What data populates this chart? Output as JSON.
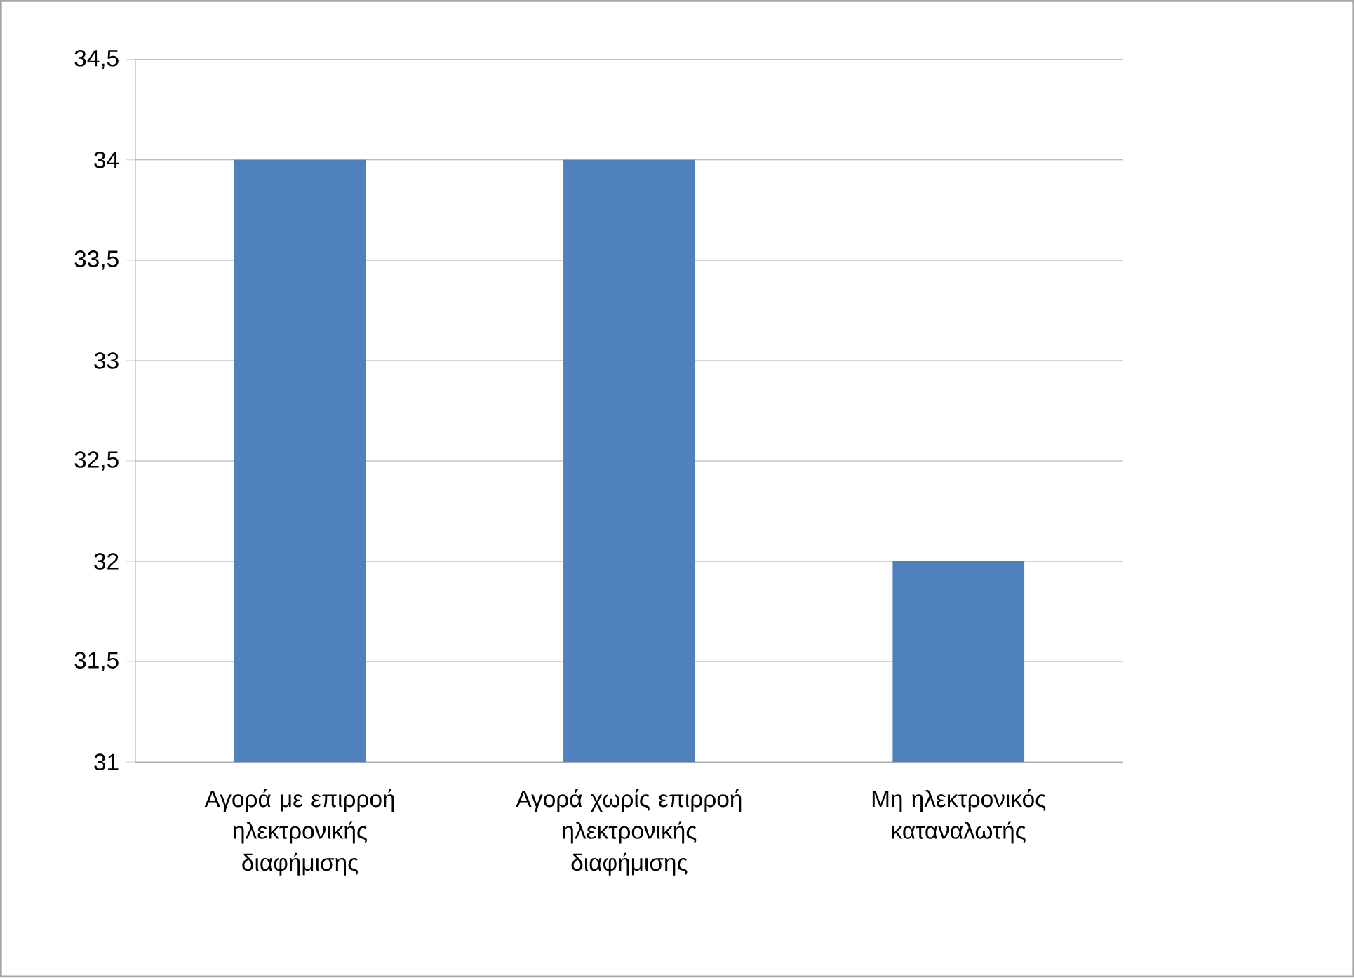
{
  "chart_data": {
    "type": "bar",
    "categories": [
      "Αγορά με επιρροή ηλεκτρονικής διαφήμισης",
      "Αγορά χωρίς επιρροή ηλεκτρονικής διαφήμισης",
      "Μη ηλεκτρονικός καταναλωτής"
    ],
    "values": [
      34,
      34,
      32
    ],
    "color": "#4f81bd",
    "ylim": [
      31,
      34.5
    ],
    "yticks": [
      31,
      {
        "value": 31.5,
        "label": "31,5"
      },
      32,
      {
        "value": 32.5,
        "label": "32,5"
      },
      33,
      {
        "value": 33.5,
        "label": "33,5"
      },
      34,
      {
        "value": 34.5,
        "label": "34,5"
      }
    ],
    "grid": "y"
  }
}
